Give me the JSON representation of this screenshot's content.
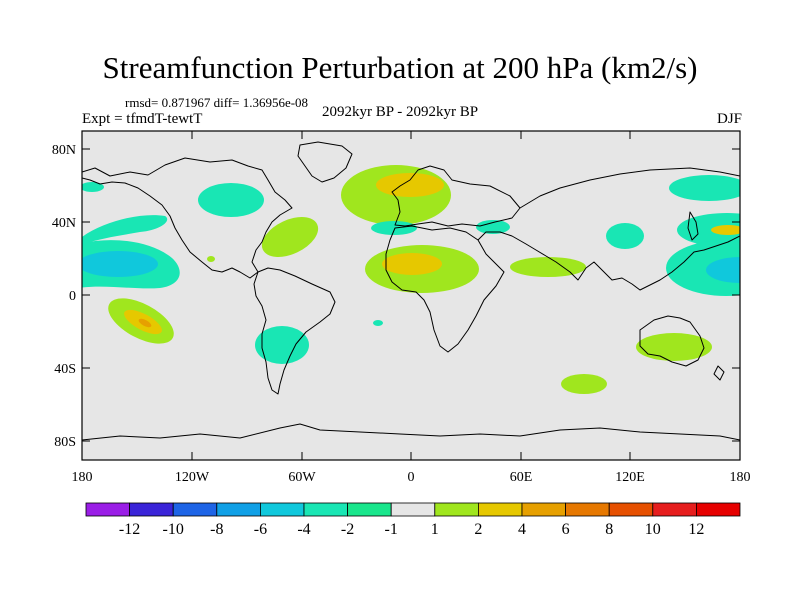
{
  "title": "Streamfunction Perturbation at 200 hPa (km2/s)",
  "stats_text": "rmsd= 0.871967 diff= 1.36956e-08",
  "experiment_label": "Expt = tfmdT-tewtT",
  "period_label": "2092kyr BP - 2092kyr BP",
  "season_label": "DJF",
  "lat_ticks": [
    "80N",
    "40N",
    "0",
    "40S",
    "80S"
  ],
  "lon_ticks": [
    "180",
    "120W",
    "60W",
    "0",
    "60E",
    "120E",
    "180"
  ],
  "colorbar": {
    "labels": [
      "-12",
      "-10",
      "-8",
      "-6",
      "-4",
      "-2",
      "-1",
      "1",
      "2",
      "4",
      "6",
      "8",
      "10",
      "12"
    ],
    "colors": [
      "#9a1ee6",
      "#3a24d8",
      "#1e64e6",
      "#10a0e6",
      "#10c8dc",
      "#19e6b4",
      "#19e68c",
      "#e6e6e6",
      "#a0e61e",
      "#e6c800",
      "#e6a000",
      "#e67800",
      "#e65000",
      "#e61e1e",
      "#e60000"
    ]
  },
  "chart_data": {
    "type": "heatmap",
    "title": "Streamfunction Perturbation at 200 hPa (km2/s)",
    "variable": "Streamfunction Perturbation",
    "level": "200 hPa",
    "units": "km2/s",
    "season": "DJF",
    "period": "2092kyr BP - 2092kyr BP",
    "rmsd": 0.871967,
    "diff": 1.36956e-08,
    "xlim": [
      -180,
      180
    ],
    "ylim": [
      -90,
      90
    ],
    "levels": [
      -12,
      -10,
      -8,
      -6,
      -4,
      -2,
      -1,
      1,
      2,
      4,
      6,
      8,
      10,
      12
    ],
    "anomalies": [
      {
        "lon": -145,
        "lat": 16,
        "value": -3,
        "region": "North Pacific (east of Hawaii)"
      },
      {
        "lon": -170,
        "lat": 32,
        "value": -1.5,
        "region": "North Pacific"
      },
      {
        "lon": -160,
        "lat": 50,
        "value": -1.5,
        "region": "Gulf of Alaska"
      },
      {
        "lon": -105,
        "lat": 52,
        "value": -1.5,
        "region": "Canada"
      },
      {
        "lon": -60,
        "lat": 33,
        "value": 2,
        "region": "Western North Atlantic"
      },
      {
        "lon": 5,
        "lat": 59,
        "value": 4,
        "region": "Northern Europe"
      },
      {
        "lon": 3,
        "lat": 18,
        "value": 4,
        "region": "North Africa"
      },
      {
        "lon": 52,
        "lat": 16,
        "value": 2,
        "region": "Arabian Sea"
      },
      {
        "lon": 130,
        "lat": 57,
        "value": -1.5,
        "region": "Siberia"
      },
      {
        "lon": 165,
        "lat": 42,
        "value": 4,
        "region": "NW Pacific"
      },
      {
        "lon": 170,
        "lat": 15,
        "value": -2,
        "region": "Western Pacific"
      },
      {
        "lon": -147,
        "lat": -12,
        "value": 6,
        "region": "South Pacific"
      },
      {
        "lon": -70,
        "lat": -29,
        "value": -1.5,
        "region": "Chile / S. America"
      },
      {
        "lon": 93,
        "lat": -46,
        "value": 2,
        "region": "Southern Indian Ocean"
      },
      {
        "lon": 143,
        "lat": -27,
        "value": 2,
        "region": "Australia"
      }
    ]
  }
}
